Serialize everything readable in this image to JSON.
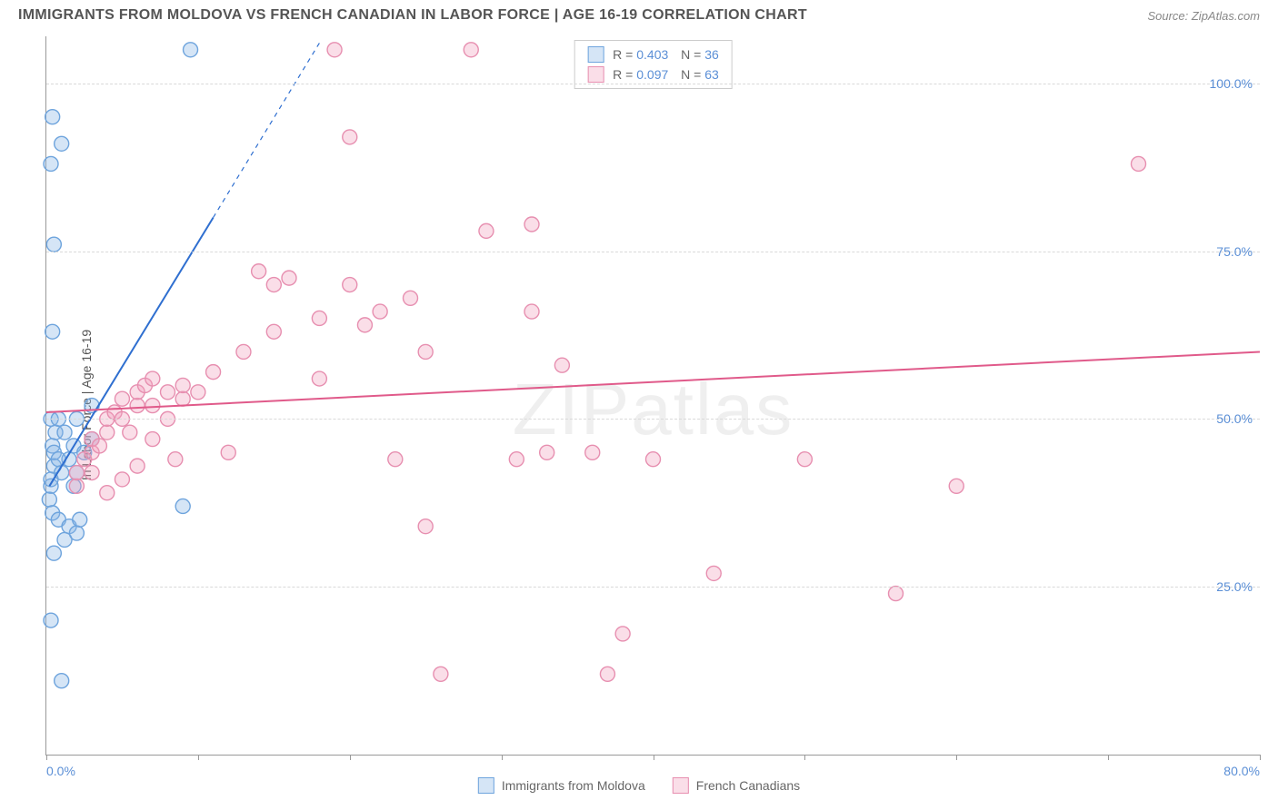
{
  "header": {
    "title": "IMMIGRANTS FROM MOLDOVA VS FRENCH CANADIAN IN LABOR FORCE | AGE 16-19 CORRELATION CHART",
    "source": "Source: ZipAtlas.com"
  },
  "chart": {
    "type": "scatter",
    "ylabel": "In Labor Force | Age 16-19",
    "xlim": [
      0,
      80
    ],
    "ylim": [
      0,
      107
    ],
    "xticks": [
      0,
      10,
      20,
      30,
      40,
      50,
      60,
      70,
      80
    ],
    "xtick_labels_shown": {
      "0": "0.0%",
      "80": "80.0%"
    },
    "yticks": [
      25,
      50,
      75,
      100
    ],
    "ytick_labels": [
      "25.0%",
      "50.0%",
      "75.0%",
      "100.0%"
    ],
    "grid_color": "#d9d9d9",
    "axis_color": "#999999",
    "background_color": "#ffffff",
    "tick_label_color": "#5b8fd6",
    "ylabel_color": "#555555",
    "marker_radius": 8,
    "marker_stroke_width": 1.4,
    "series": [
      {
        "name": "Immigrants from Moldova",
        "fill": "rgba(135,180,230,0.35)",
        "stroke": "#6ea4dd",
        "R": "0.403",
        "N": "36",
        "trend": {
          "x1": 0.2,
          "y1": 40,
          "x2": 11,
          "y2": 80,
          "dash_x2": 18,
          "dash_y2": 106,
          "stroke": "#2f6fd0",
          "width": 2
        },
        "points": [
          [
            0.3,
            40
          ],
          [
            0.3,
            41
          ],
          [
            0.5,
            43
          ],
          [
            0.4,
            46
          ],
          [
            0.6,
            48
          ],
          [
            0.3,
            50
          ],
          [
            0.8,
            50
          ],
          [
            0.2,
            38
          ],
          [
            0.4,
            36
          ],
          [
            0.8,
            35
          ],
          [
            1.5,
            34
          ],
          [
            1.2,
            32
          ],
          [
            2.0,
            33
          ],
          [
            2.2,
            35
          ],
          [
            0.5,
            30
          ],
          [
            1.0,
            42
          ],
          [
            1.5,
            44
          ],
          [
            1.8,
            46
          ],
          [
            2.5,
            45
          ],
          [
            3.0,
            47
          ],
          [
            2.0,
            50
          ],
          [
            3.0,
            52
          ],
          [
            0.4,
            63
          ],
          [
            0.5,
            76
          ],
          [
            0.3,
            88
          ],
          [
            1.0,
            91
          ],
          [
            0.4,
            95
          ],
          [
            9.5,
            105
          ],
          [
            9.0,
            37
          ],
          [
            1.8,
            40
          ],
          [
            0.3,
            20
          ],
          [
            1.0,
            11
          ],
          [
            0.5,
            45
          ],
          [
            1.2,
            48
          ],
          [
            2.0,
            42
          ],
          [
            0.8,
            44
          ]
        ]
      },
      {
        "name": "French Canadians",
        "fill": "rgba(240,160,190,0.35)",
        "stroke": "#e78fb0",
        "R": "0.097",
        "N": "63",
        "trend": {
          "x1": 0,
          "y1": 51,
          "x2": 80,
          "y2": 60,
          "stroke": "#e05a8a",
          "width": 2
        },
        "points": [
          [
            2,
            40
          ],
          [
            2,
            42
          ],
          [
            2.5,
            44
          ],
          [
            3,
            45
          ],
          [
            3,
            47
          ],
          [
            3.5,
            46
          ],
          [
            4,
            48
          ],
          [
            4,
            50
          ],
          [
            4.5,
            51
          ],
          [
            5,
            53
          ],
          [
            5,
            50
          ],
          [
            5.5,
            48
          ],
          [
            6,
            52
          ],
          [
            6,
            54
          ],
          [
            6.5,
            55
          ],
          [
            7,
            52
          ],
          [
            7,
            56
          ],
          [
            8,
            54
          ],
          [
            8,
            50
          ],
          [
            8.5,
            44
          ],
          [
            9,
            53
          ],
          [
            9,
            55
          ],
          [
            10,
            54
          ],
          [
            11,
            57
          ],
          [
            12,
            45
          ],
          [
            13,
            60
          ],
          [
            14,
            72
          ],
          [
            15,
            63
          ],
          [
            15,
            70
          ],
          [
            16,
            71
          ],
          [
            18,
            56
          ],
          [
            18,
            65
          ],
          [
            19,
            105
          ],
          [
            20,
            70
          ],
          [
            20,
            92
          ],
          [
            21,
            64
          ],
          [
            22,
            66
          ],
          [
            23,
            44
          ],
          [
            24,
            68
          ],
          [
            25,
            60
          ],
          [
            25,
            34
          ],
          [
            26,
            12
          ],
          [
            28,
            105
          ],
          [
            29,
            78
          ],
          [
            31,
            44
          ],
          [
            32,
            66
          ],
          [
            32,
            79
          ],
          [
            33,
            45
          ],
          [
            34,
            58
          ],
          [
            36,
            45
          ],
          [
            37,
            12
          ],
          [
            38,
            18
          ],
          [
            40,
            44
          ],
          [
            44,
            27
          ],
          [
            50,
            44
          ],
          [
            56,
            24
          ],
          [
            60,
            40
          ],
          [
            72,
            88
          ],
          [
            4,
            39
          ],
          [
            5,
            41
          ],
          [
            6,
            43
          ],
          [
            3,
            42
          ],
          [
            7,
            47
          ]
        ]
      }
    ],
    "legend_bottom": [
      {
        "label": "Immigrants from Moldova",
        "fill": "rgba(135,180,230,0.35)",
        "stroke": "#6ea4dd"
      },
      {
        "label": "French Canadians",
        "fill": "rgba(240,160,190,0.35)",
        "stroke": "#e78fb0"
      }
    ],
    "watermark": "ZIPatlas"
  }
}
